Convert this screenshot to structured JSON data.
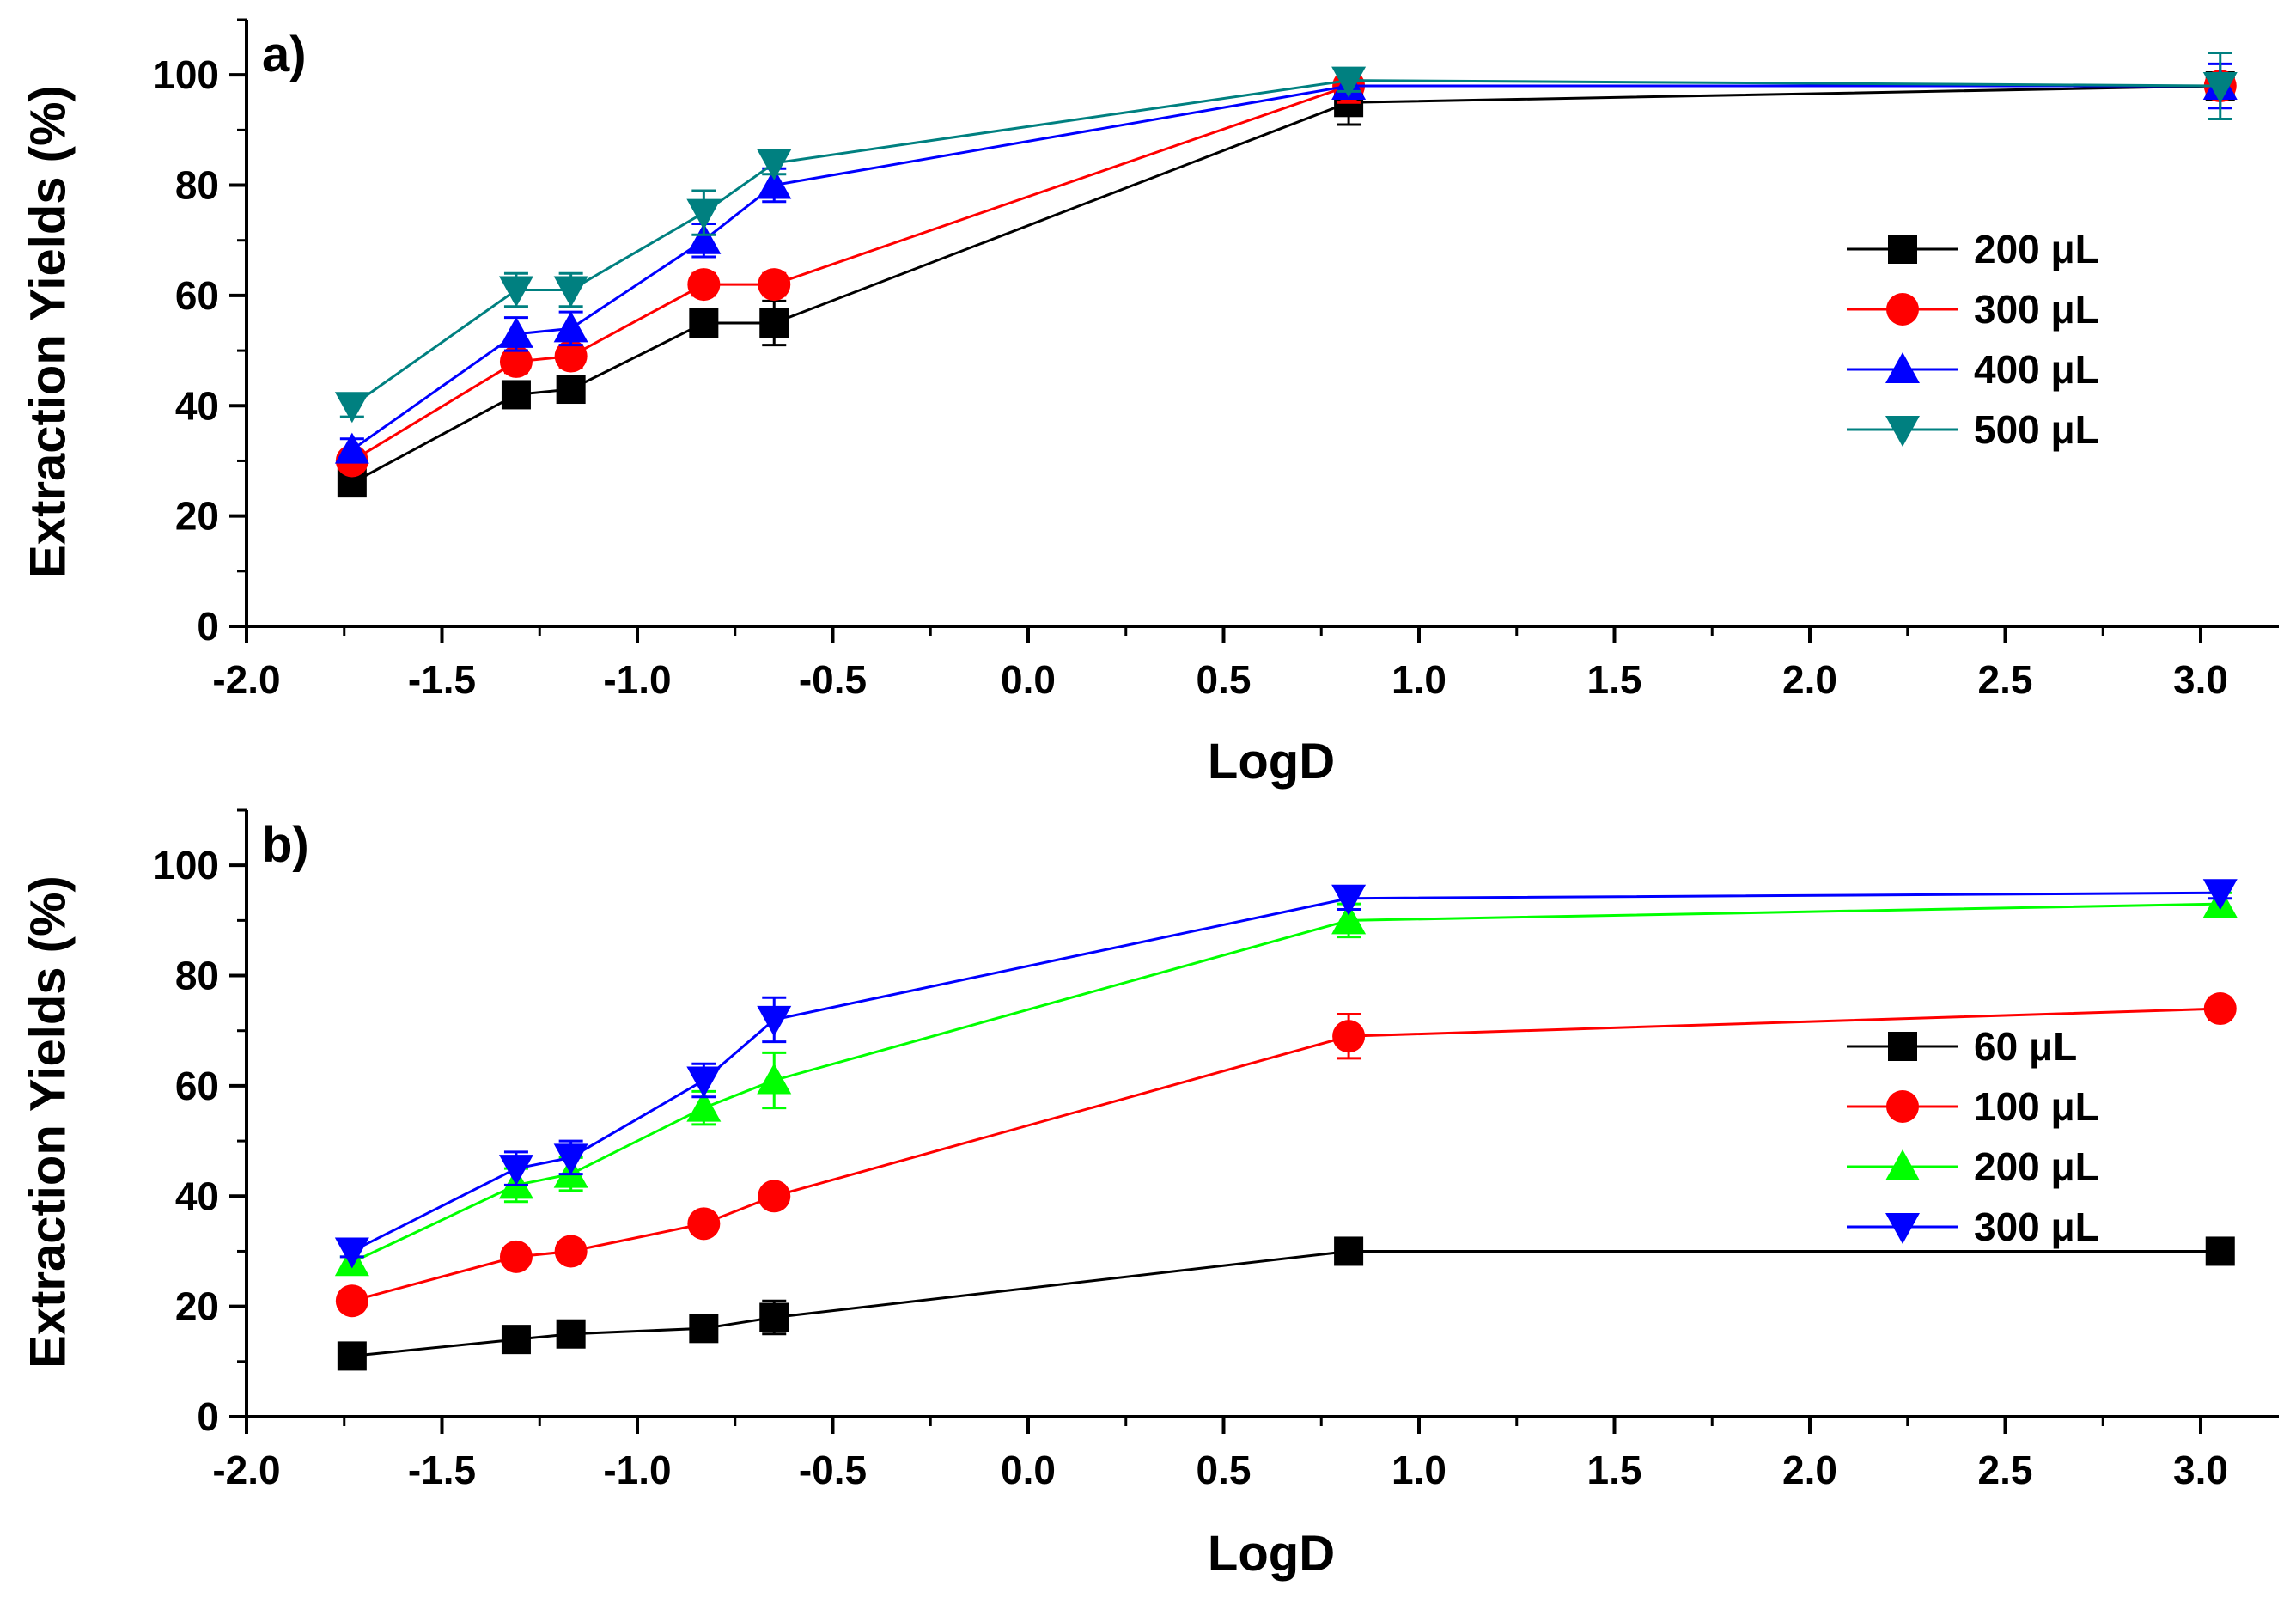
{
  "chart_data": [
    {
      "type": "line",
      "panel_label": "a)",
      "xlabel": "LogD",
      "ylabel": "Extraction Yields (%)",
      "xlim": [
        -2.0,
        3.2
      ],
      "ylim": [
        0,
        110
      ],
      "xticks": [
        "-2.0",
        "-1.5",
        "-1.0",
        "-0.5",
        "0.0",
        "0.5",
        "1.0",
        "1.5",
        "2.0",
        "2.5",
        "3.0"
      ],
      "yticks": [
        "0",
        "20",
        "40",
        "60",
        "80",
        "100"
      ],
      "legend_position": "right",
      "x": [
        -1.73,
        -1.31,
        -1.17,
        -0.83,
        -0.65,
        0.82,
        3.05
      ],
      "series": [
        {
          "name": "200 μL",
          "color": "#000000",
          "marker": "square",
          "values": [
            26,
            42,
            43,
            55,
            55,
            95,
            98
          ],
          "errors": [
            1,
            1,
            1,
            1,
            4,
            4,
            2
          ]
        },
        {
          "name": "300 μL",
          "color": "#ff0000",
          "marker": "circle",
          "values": [
            30,
            48,
            49,
            62,
            62,
            98,
            98
          ],
          "errors": [
            1,
            2,
            2,
            2,
            2,
            3,
            2
          ]
        },
        {
          "name": "400 μL",
          "color": "#0000ff",
          "marker": "triangle-up",
          "values": [
            32,
            53,
            54,
            70,
            80,
            98,
            98
          ],
          "errors": [
            2,
            3,
            3,
            3,
            3,
            2,
            4
          ]
        },
        {
          "name": "500 μL",
          "color": "#008080",
          "marker": "triangle-down",
          "values": [
            40,
            61,
            61,
            75,
            84,
            99,
            98
          ],
          "errors": [
            2,
            3,
            3,
            4,
            2,
            2,
            6
          ]
        }
      ]
    },
    {
      "type": "line",
      "panel_label": "b)",
      "xlabel": "LogD",
      "ylabel": "Extraction Yields (%)",
      "xlim": [
        -2.0,
        3.2
      ],
      "ylim": [
        0,
        110
      ],
      "xticks": [
        "-2.0",
        "-1.5",
        "-1.0",
        "-0.5",
        "0.0",
        "0.5",
        "1.0",
        "1.5",
        "2.0",
        "2.5",
        "3.0"
      ],
      "yticks": [
        "0",
        "20",
        "40",
        "60",
        "80",
        "100"
      ],
      "legend_position": "right",
      "x": [
        -1.73,
        -1.31,
        -1.17,
        -0.83,
        -0.65,
        0.82,
        3.05
      ],
      "series": [
        {
          "name": "60 μL",
          "color": "#000000",
          "marker": "square",
          "values": [
            11,
            14,
            15,
            16,
            18,
            30,
            30
          ],
          "errors": [
            1,
            1,
            1,
            1,
            3,
            1,
            1
          ]
        },
        {
          "name": "100 μL",
          "color": "#ff0000",
          "marker": "circle",
          "values": [
            21,
            29,
            30,
            35,
            40,
            69,
            74
          ],
          "errors": [
            1,
            1,
            1,
            1,
            1,
            4,
            2
          ]
        },
        {
          "name": "200 μL",
          "color": "#00ff00",
          "marker": "triangle-up",
          "values": [
            28,
            42,
            44,
            56,
            61,
            90,
            93
          ],
          "errors": [
            1,
            3,
            3,
            3,
            5,
            3,
            2
          ]
        },
        {
          "name": "300 μL",
          "color": "#0000ff",
          "marker": "triangle-down",
          "values": [
            30,
            45,
            47,
            61,
            72,
            94,
            95
          ],
          "errors": [
            1,
            3,
            3,
            3,
            4,
            2,
            1
          ]
        }
      ]
    }
  ]
}
